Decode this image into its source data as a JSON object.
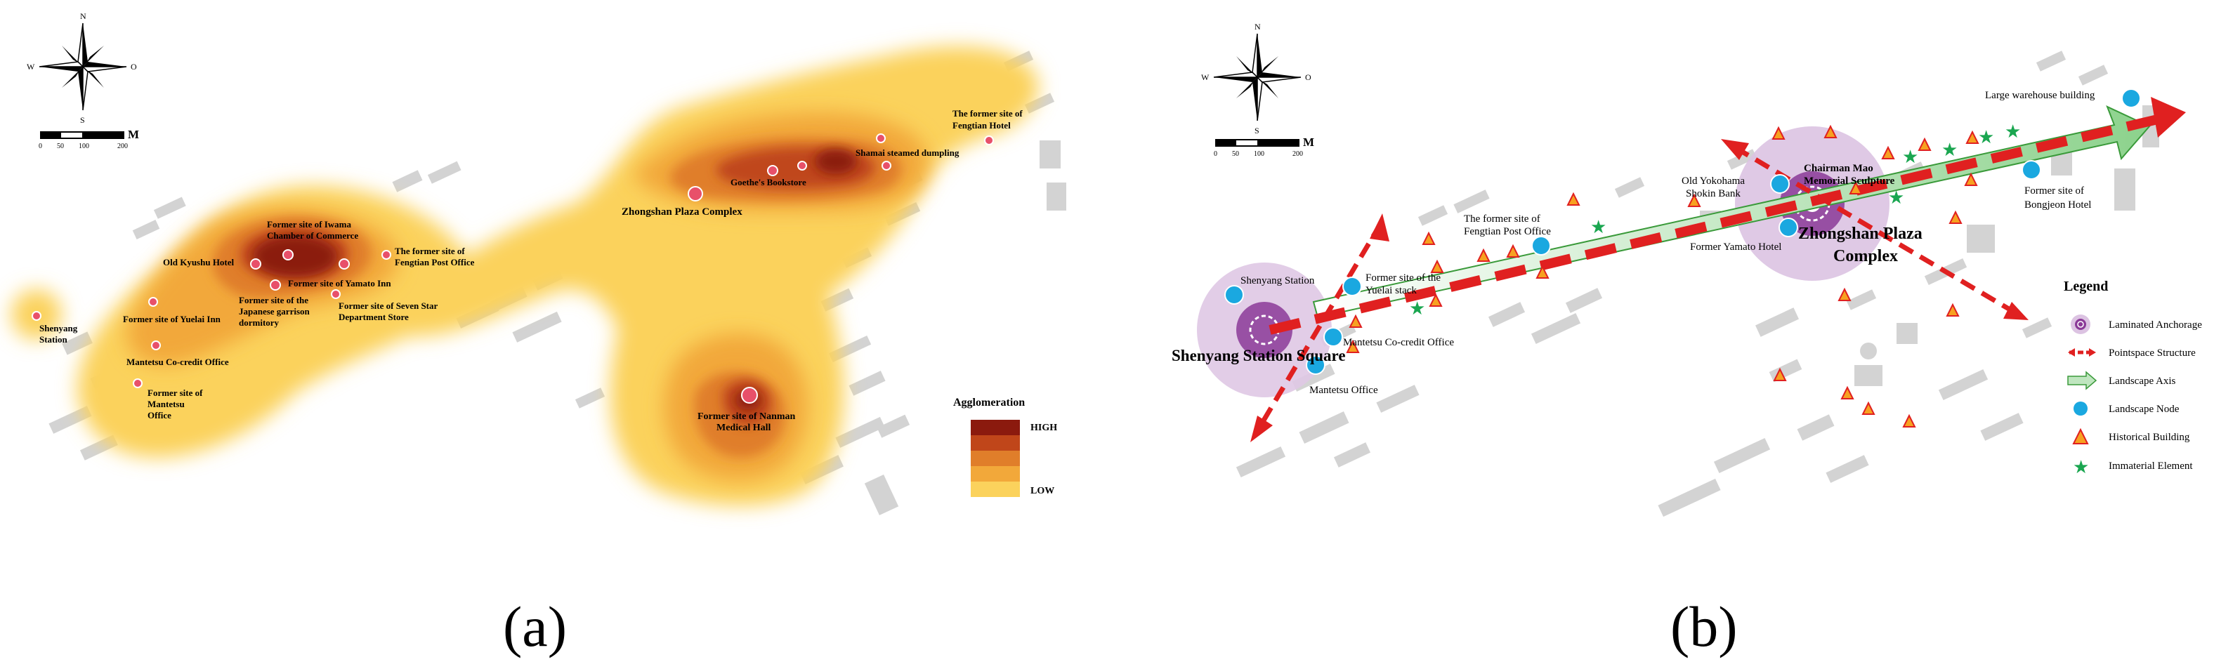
{
  "panel_a": {
    "caption": "(a)",
    "compass": {
      "n": "N",
      "s": "S",
      "w": "W",
      "e": "O"
    },
    "scalebar": {
      "unit": "M",
      "ticks": [
        "0",
        "50",
        "100",
        "200"
      ]
    },
    "labels": {
      "shenyang_station": [
        "Shenyang",
        "Station"
      ],
      "yuelai_inn": "Former site of Yuelai Inn",
      "kyushu_hotel": "Old Kyushu Hotel",
      "iwama": [
        "Former site of Iwama",
        "Chamber of Commerce"
      ],
      "post_office": [
        "The former site of",
        "Fengtian Post Office"
      ],
      "yamato_inn": "Former site of Yamato Inn",
      "garrison": [
        "Former site of the",
        "Japanese garrison",
        "dormitory"
      ],
      "seven_star": [
        "Former site of Seven Star",
        "Department Store"
      ],
      "credit_office": "Mantetsu Co-credit Office",
      "mantetsu_office": [
        "Former site of",
        "Mantetsu",
        "Office"
      ],
      "zhongshan": "Zhongshan Plaza Complex",
      "goethe": "Goethe's Bookstore",
      "shamai": "Shamai steamed dumpling",
      "fengtian_hotel": [
        "The former site of",
        "Fengtian Hotel"
      ],
      "nanman": [
        "Former site of Nanman",
        "Medical Hall"
      ]
    },
    "legend": {
      "title": "Agglomeration",
      "high": "HIGH",
      "low": "LOW",
      "colors": [
        "#8b1a0e",
        "#c0461a",
        "#e07e2a",
        "#f2a83a",
        "#fbd25c"
      ]
    }
  },
  "panel_b": {
    "caption": "(b)",
    "compass": {
      "n": "N",
      "s": "S",
      "w": "W",
      "e": "O"
    },
    "scalebar": {
      "unit": "M",
      "ticks": [
        "0",
        "50",
        "100",
        "200"
      ]
    },
    "labels": {
      "shenyang_station": "Shenyang Station",
      "station_square": "Shenyang Station Square",
      "yuelai": [
        "Former site of the",
        "Yuelai stack"
      ],
      "credit_office": "Mantetsu Co-credit Office",
      "mantetsu_office": "Mantetsu Office",
      "post_office": [
        "The former site of",
        "Fengtian Post Office"
      ],
      "yokohama": [
        "Old Yokohama",
        "Shokin Bank"
      ],
      "chairman": [
        "Chairman Mao",
        "Memorial Sculpture"
      ],
      "zhongshan": [
        "Zhongshan Plaza",
        "Complex"
      ],
      "yamato_hotel": "Former Yamato Hotel",
      "warehouse": "Large warehouse building",
      "bongjeon": [
        "Former site of",
        "Bongjeon Hotel"
      ]
    },
    "legend": {
      "title": "Legend",
      "items": [
        "Laminated Anchorage",
        "Pointspace Structure",
        "Landscape Axis",
        "Landscape Node",
        "Historical Building",
        "Immaterial Element"
      ]
    }
  }
}
